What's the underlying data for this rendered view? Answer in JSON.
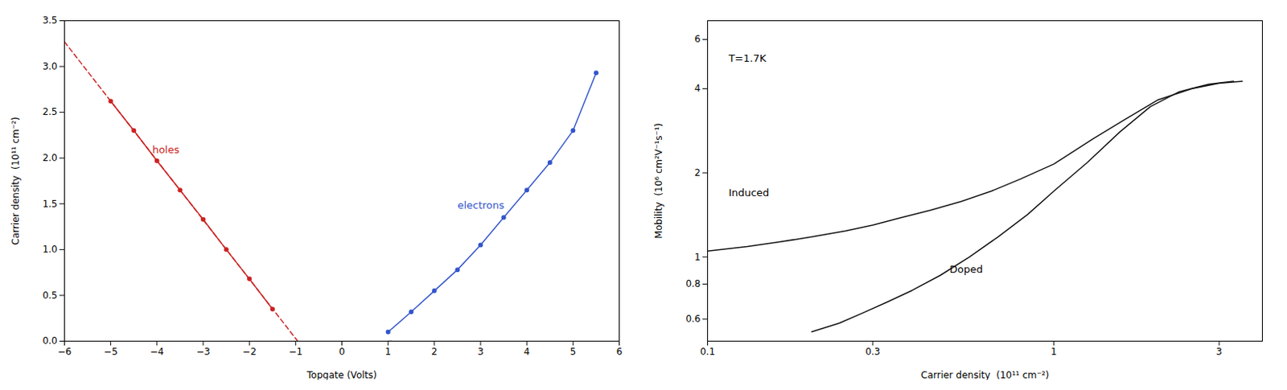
{
  "chart_data": [
    {
      "type": "line",
      "xlabel": "Topgate (Volts)",
      "ylabel": "Carrier density  (10¹¹ cm⁻²)",
      "xlim": [
        -6,
        6
      ],
      "ylim": [
        0.0,
        3.5
      ],
      "xticks": [
        -6,
        -5,
        -4,
        -3,
        -2,
        -1,
        0,
        1,
        2,
        3,
        4,
        5,
        6
      ],
      "yticks": [
        {
          "value": 0.0,
          "label": "0.0"
        },
        {
          "value": 0.5,
          "label": "0.5"
        },
        {
          "value": 1.0,
          "label": "1.0"
        },
        {
          "value": 1.5,
          "label": "1.5"
        },
        {
          "value": 2.0,
          "label": "2.0"
        },
        {
          "value": 2.5,
          "label": "2.5"
        },
        {
          "value": 3.0,
          "label": "3.0"
        },
        {
          "value": 3.5,
          "label": "3.5"
        }
      ],
      "grid": false,
      "series": [
        {
          "color": "#cc2222",
          "line_style": "dashed",
          "x": [
            -6.0,
            -0.9548
          ],
          "values": [
            3.2698,
            0.0
          ]
        },
        {
          "color": "#3355cc",
          "line_style": "dashed",
          "x": [
            1.0752,
            1.0
          ],
          "values": [
            0.0,
            0.0
          ]
        },
        {
          "name": "holes",
          "color": "#cc2222",
          "line_style": "solid",
          "marker": "circle",
          "x": [
            -5.0,
            -4.5,
            -4.0,
            -3.5,
            -3.0,
            -2.5,
            -2.0,
            -1.5
          ],
          "values": [
            2.62,
            2.3,
            1.97,
            1.65,
            1.33,
            1.0,
            0.68,
            0.35
          ]
        },
        {
          "name": "electrons",
          "color": "#3355cc",
          "line_style": "solid",
          "marker": "circle",
          "x": [
            1.0,
            1.5,
            2.0,
            2.5,
            3.0,
            3.5,
            4.0,
            4.5,
            5.0,
            5.5
          ],
          "values": [
            0.1,
            0.32,
            0.55,
            0.78,
            1.05,
            1.35,
            1.65,
            1.95,
            2.3,
            2.93
          ]
        }
      ],
      "annotations": [
        {
          "text": "holes",
          "x": -4.1,
          "y": 2.05,
          "color": "#cc2222"
        },
        {
          "text": "electrons",
          "x": 2.5,
          "y": 1.45,
          "color": "#3355cc"
        }
      ]
    },
    {
      "type": "line",
      "log": true,
      "xlabel": "Carrier density  (10¹¹ cm⁻²)",
      "ylabel": "Mobility  (10⁶ cm²V⁻¹s⁻¹)",
      "xlim": [
        0.1,
        4.0
      ],
      "ylim": [
        0.5,
        7.0
      ],
      "xticks": [
        0.1,
        0.3,
        1,
        3
      ],
      "yticks": [
        0.6,
        0.8,
        1,
        2,
        4,
        6
      ],
      "grid": false,
      "series": [
        {
          "name": "Induced",
          "color": "#111111",
          "line_style": "solid",
          "x": [
            0.1,
            0.13,
            0.16,
            0.2,
            0.25,
            0.3,
            0.36,
            0.44,
            0.54,
            0.66,
            0.8,
            1.0,
            1.3,
            1.6,
            2.0,
            2.5,
            3.0,
            3.5
          ],
          "values": [
            1.05,
            1.09,
            1.13,
            1.18,
            1.24,
            1.3,
            1.38,
            1.47,
            1.58,
            1.72,
            1.9,
            2.15,
            2.65,
            3.1,
            3.65,
            4.0,
            4.18,
            4.25
          ]
        },
        {
          "name": "Doped",
          "color": "#111111",
          "line_style": "solid",
          "x": [
            0.2,
            0.24,
            0.28,
            0.33,
            0.39,
            0.47,
            0.57,
            0.69,
            0.84,
            1.0,
            1.25,
            1.55,
            1.9,
            2.3,
            2.8,
            3.3
          ],
          "values": [
            0.54,
            0.58,
            0.63,
            0.69,
            0.76,
            0.86,
            1.0,
            1.18,
            1.42,
            1.72,
            2.18,
            2.8,
            3.45,
            3.9,
            4.15,
            4.25
          ]
        }
      ],
      "annotations": [
        {
          "text": "T=1.7K",
          "x": 0.115,
          "y": 5.0
        },
        {
          "text": "Induced",
          "x": 0.115,
          "y": 1.65
        },
        {
          "text": "Doped",
          "x": 0.5,
          "y": 0.88
        }
      ]
    }
  ]
}
